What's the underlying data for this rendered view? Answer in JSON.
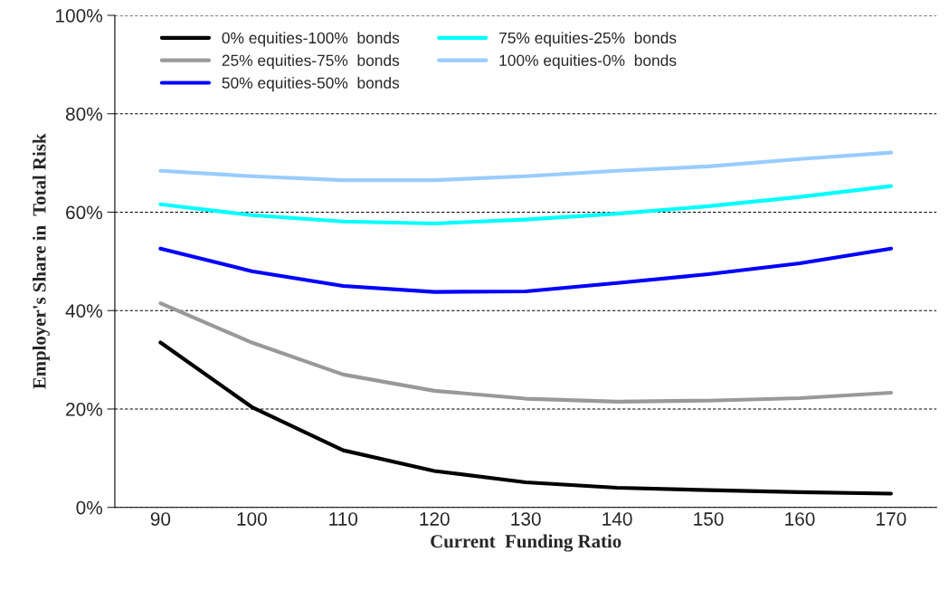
{
  "chart_data": {
    "type": "line",
    "xlabel": "Current  Funding Ratio",
    "ylabel": "Employer's Share in  Total Risk",
    "categories": [
      "90",
      "100",
      "110",
      "120",
      "130",
      "140",
      "150",
      "160",
      "170"
    ],
    "series": [
      {
        "name": "0% equities-100%  bonds",
        "color": "#000000",
        "values": [
          33.5,
          20.4,
          11.6,
          7.4,
          5.1,
          4.0,
          3.5,
          3.1,
          2.8
        ]
      },
      {
        "name": "25% equities-75%  bonds",
        "color": "#999999",
        "values": [
          41.5,
          33.5,
          27.0,
          23.7,
          22.1,
          21.5,
          21.7,
          22.2,
          23.3
        ]
      },
      {
        "name": "50% equities-50%  bonds",
        "color": "#0000ff",
        "values": [
          52.6,
          48.0,
          45.0,
          43.8,
          43.9,
          45.6,
          47.4,
          49.6,
          52.6
        ]
      },
      {
        "name": "75% equities-25%  bonds",
        "color": "#00ffff",
        "values": [
          61.6,
          59.4,
          58.1,
          57.7,
          58.5,
          59.7,
          61.2,
          63.1,
          65.3
        ]
      },
      {
        "name": "100% equities-0%  bonds",
        "color": "#99ccff",
        "values": [
          68.4,
          67.3,
          66.5,
          66.5,
          67.3,
          68.4,
          69.3,
          70.8,
          72.1
        ]
      }
    ],
    "ylim": [
      0,
      100
    ],
    "yticks": [
      {
        "value": 0,
        "label": "0%"
      },
      {
        "value": 20,
        "label": "20%"
      },
      {
        "value": 40,
        "label": "40%"
      },
      {
        "value": 60,
        "label": "60%"
      },
      {
        "value": 80,
        "label": "80%"
      },
      {
        "value": 100,
        "label": "100%"
      }
    ],
    "grid": "y",
    "legend": "top left",
    "marker": "none",
    "line_style": "solid"
  }
}
